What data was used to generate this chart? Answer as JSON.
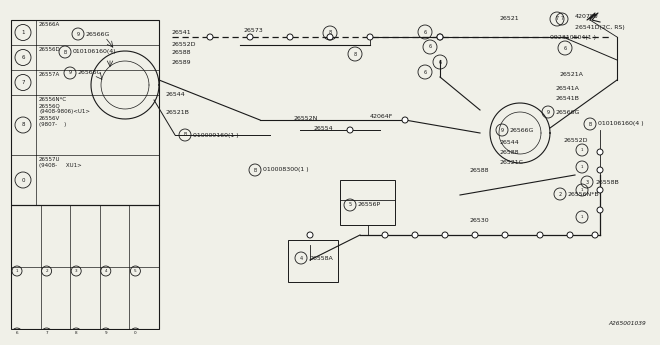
{
  "bg_color": "#f0f0e8",
  "line_color": "#1a1a1a",
  "diagram_id": "A265001039",
  "legend_rows": [
    {
      "num": "1",
      "code": "26566A"
    },
    {
      "num": "6",
      "code": "26556D"
    },
    {
      "num": "7",
      "code": "26557A"
    },
    {
      "num": "8",
      "code": "26556N*C\n26556Q\n(9408-9806)<U1>\n26556V\n(9807-    )"
    },
    {
      "num": "0",
      "code": "26557U\n(9408-     XU1>"
    }
  ],
  "icon_nums_row1": [
    "1",
    "2",
    "3",
    "4",
    "5"
  ],
  "icon_nums_row2": [
    "6",
    "7",
    "8",
    "9",
    "0"
  ]
}
